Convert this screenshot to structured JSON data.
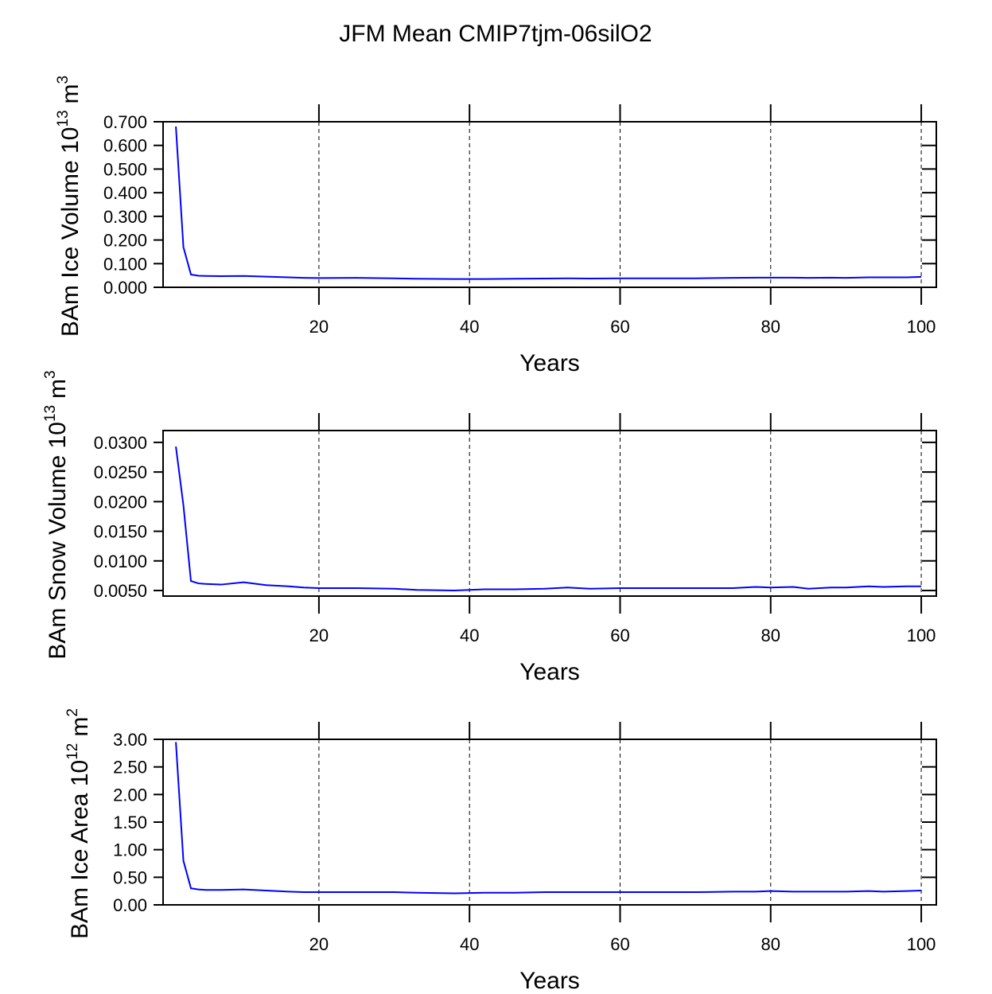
{
  "title": "JFM Mean CMIP7tjm-06silO2",
  "chart_data": [
    {
      "type": "line",
      "y_label": {
        "text": "BAm Ice Volume 10",
        "exponent": "13",
        "unit": "m",
        "unit_power": "3"
      },
      "x_label": "Years",
      "x": [
        1,
        2,
        3,
        4,
        5,
        7,
        10,
        13,
        16,
        18,
        20,
        25,
        30,
        33,
        38,
        42,
        46,
        50,
        53,
        56,
        60,
        65,
        70,
        75,
        78,
        80,
        83,
        85,
        88,
        90,
        93,
        95,
        98,
        100
      ],
      "series": [
        {
          "color": "#0000ff",
          "values": [
            0.68,
            0.17,
            0.054,
            0.049,
            0.048,
            0.047,
            0.048,
            0.045,
            0.042,
            0.04,
            0.039,
            0.04,
            0.038,
            0.036,
            0.035,
            0.035,
            0.036,
            0.037,
            0.038,
            0.037,
            0.038,
            0.038,
            0.038,
            0.04,
            0.041,
            0.041,
            0.041,
            0.04,
            0.041,
            0.04,
            0.042,
            0.042,
            0.042,
            0.044
          ]
        }
      ],
      "xlim": [
        -0.7,
        102
      ],
      "xticks": [
        20,
        40,
        60,
        80,
        100
      ],
      "ylim": [
        0,
        0.7
      ],
      "yticks": [
        {
          "value": 0,
          "label": "0.000"
        },
        {
          "value": 0.1,
          "label": "0.100"
        },
        {
          "value": 0.2,
          "label": "0.200"
        },
        {
          "value": 0.3,
          "label": "0.300"
        },
        {
          "value": 0.4,
          "label": "0.400"
        },
        {
          "value": 0.5,
          "label": "0.500"
        },
        {
          "value": 0.6,
          "label": "0.600"
        },
        {
          "value": 0.7,
          "label": "0.700"
        }
      ],
      "grid_x": true
    },
    {
      "type": "line",
      "y_label": {
        "text": "BAm Snow Volume 10",
        "exponent": "13",
        "unit": "m",
        "unit_power": "3"
      },
      "x_label": "Years",
      "x": [
        1,
        2,
        3,
        4,
        5,
        7,
        10,
        13,
        16,
        18,
        20,
        25,
        30,
        33,
        38,
        42,
        46,
        50,
        53,
        56,
        60,
        65,
        70,
        75,
        78,
        80,
        83,
        85,
        88,
        90,
        93,
        95,
        98,
        100
      ],
      "series": [
        {
          "color": "#0000ff",
          "values": [
            0.0293,
            0.0194,
            0.0066,
            0.0062,
            0.0061,
            0.006,
            0.0064,
            0.0059,
            0.0057,
            0.0055,
            0.0054,
            0.0054,
            0.0053,
            0.0051,
            0.005,
            0.0052,
            0.0052,
            0.0053,
            0.0055,
            0.0053,
            0.0054,
            0.0054,
            0.0054,
            0.0054,
            0.0056,
            0.0055,
            0.0056,
            0.0053,
            0.0055,
            0.0055,
            0.0057,
            0.0056,
            0.0057,
            0.0057
          ]
        }
      ],
      "xlim": [
        -0.7,
        102
      ],
      "xticks": [
        20,
        40,
        60,
        80,
        100
      ],
      "ylim": [
        0.00406,
        0.032
      ],
      "yticks": [
        {
          "value": 0.005,
          "label": "0.0050"
        },
        {
          "value": 0.01,
          "label": "0.0100"
        },
        {
          "value": 0.015,
          "label": "0.0150"
        },
        {
          "value": 0.02,
          "label": "0.0200"
        },
        {
          "value": 0.025,
          "label": "0.0250"
        },
        {
          "value": 0.03,
          "label": "0.0300"
        }
      ],
      "grid_x": true
    },
    {
      "type": "line",
      "y_label": {
        "text": "BAm Ice Area 10",
        "exponent": "12",
        "unit": "m",
        "unit_power": "2"
      },
      "x_label": "Years",
      "x": [
        1,
        2,
        3,
        4,
        5,
        7,
        10,
        13,
        16,
        18,
        20,
        25,
        30,
        33,
        38,
        42,
        46,
        50,
        53,
        56,
        60,
        65,
        70,
        75,
        78,
        80,
        83,
        85,
        88,
        90,
        93,
        95,
        98,
        100
      ],
      "series": [
        {
          "color": "#0000ff",
          "values": [
            2.95,
            0.8,
            0.3,
            0.28,
            0.27,
            0.27,
            0.28,
            0.26,
            0.24,
            0.23,
            0.23,
            0.23,
            0.23,
            0.22,
            0.21,
            0.22,
            0.22,
            0.23,
            0.23,
            0.23,
            0.23,
            0.23,
            0.23,
            0.24,
            0.24,
            0.25,
            0.24,
            0.24,
            0.24,
            0.24,
            0.25,
            0.24,
            0.25,
            0.26
          ]
        }
      ],
      "xlim": [
        -0.7,
        102
      ],
      "xticks": [
        20,
        40,
        60,
        80,
        100
      ],
      "ylim": [
        0,
        3
      ],
      "yticks": [
        {
          "value": 0,
          "label": "0.00"
        },
        {
          "value": 0.5,
          "label": "0.50"
        },
        {
          "value": 1,
          "label": "1.00"
        },
        {
          "value": 1.5,
          "label": "1.50"
        },
        {
          "value": 2,
          "label": "2.00"
        },
        {
          "value": 2.5,
          "label": "2.50"
        },
        {
          "value": 3,
          "label": "3.00"
        }
      ],
      "grid_x": true
    }
  ]
}
